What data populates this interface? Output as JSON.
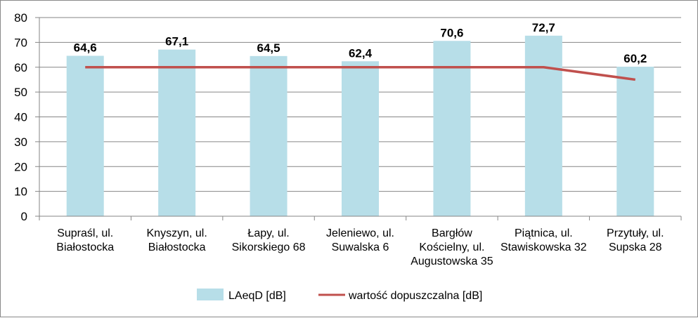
{
  "chart_data": {
    "type": "bar",
    "categories": [
      [
        "Supraśl, ul.",
        "Białostocka"
      ],
      [
        "Knyszyn, ul.",
        "Białostocka"
      ],
      [
        "Łapy, ul.",
        "Sikorskiego 68"
      ],
      [
        "Jeleniewo, ul.",
        "Suwalska 6"
      ],
      [
        "Bargłów",
        "Kościelny, ul.",
        "Augustowska 35"
      ],
      [
        "Piątnica, ul.",
        "Stawiskowska 32"
      ],
      [
        "Przytuły, ul.",
        "Supska 28"
      ]
    ],
    "series": [
      {
        "name": "LAeqD [dB]",
        "type": "bar",
        "color": "#b7dee8",
        "values": [
          64.6,
          67.1,
          64.5,
          62.4,
          70.6,
          72.7,
          60.2
        ],
        "labels": [
          "64,6",
          "67,1",
          "64,5",
          "62,4",
          "70,6",
          "72,7",
          "60,2"
        ]
      },
      {
        "name": "wartość dopuszczalna [dB]",
        "type": "line",
        "color": "#c0504d",
        "values": [
          60,
          60,
          60,
          60,
          60,
          60,
          55
        ]
      }
    ],
    "ylim": [
      0,
      80
    ],
    "yticks": [
      "0",
      "10",
      "20",
      "30",
      "40",
      "50",
      "60",
      "70",
      "80"
    ],
    "grid": true,
    "legend_position": "bottom"
  }
}
